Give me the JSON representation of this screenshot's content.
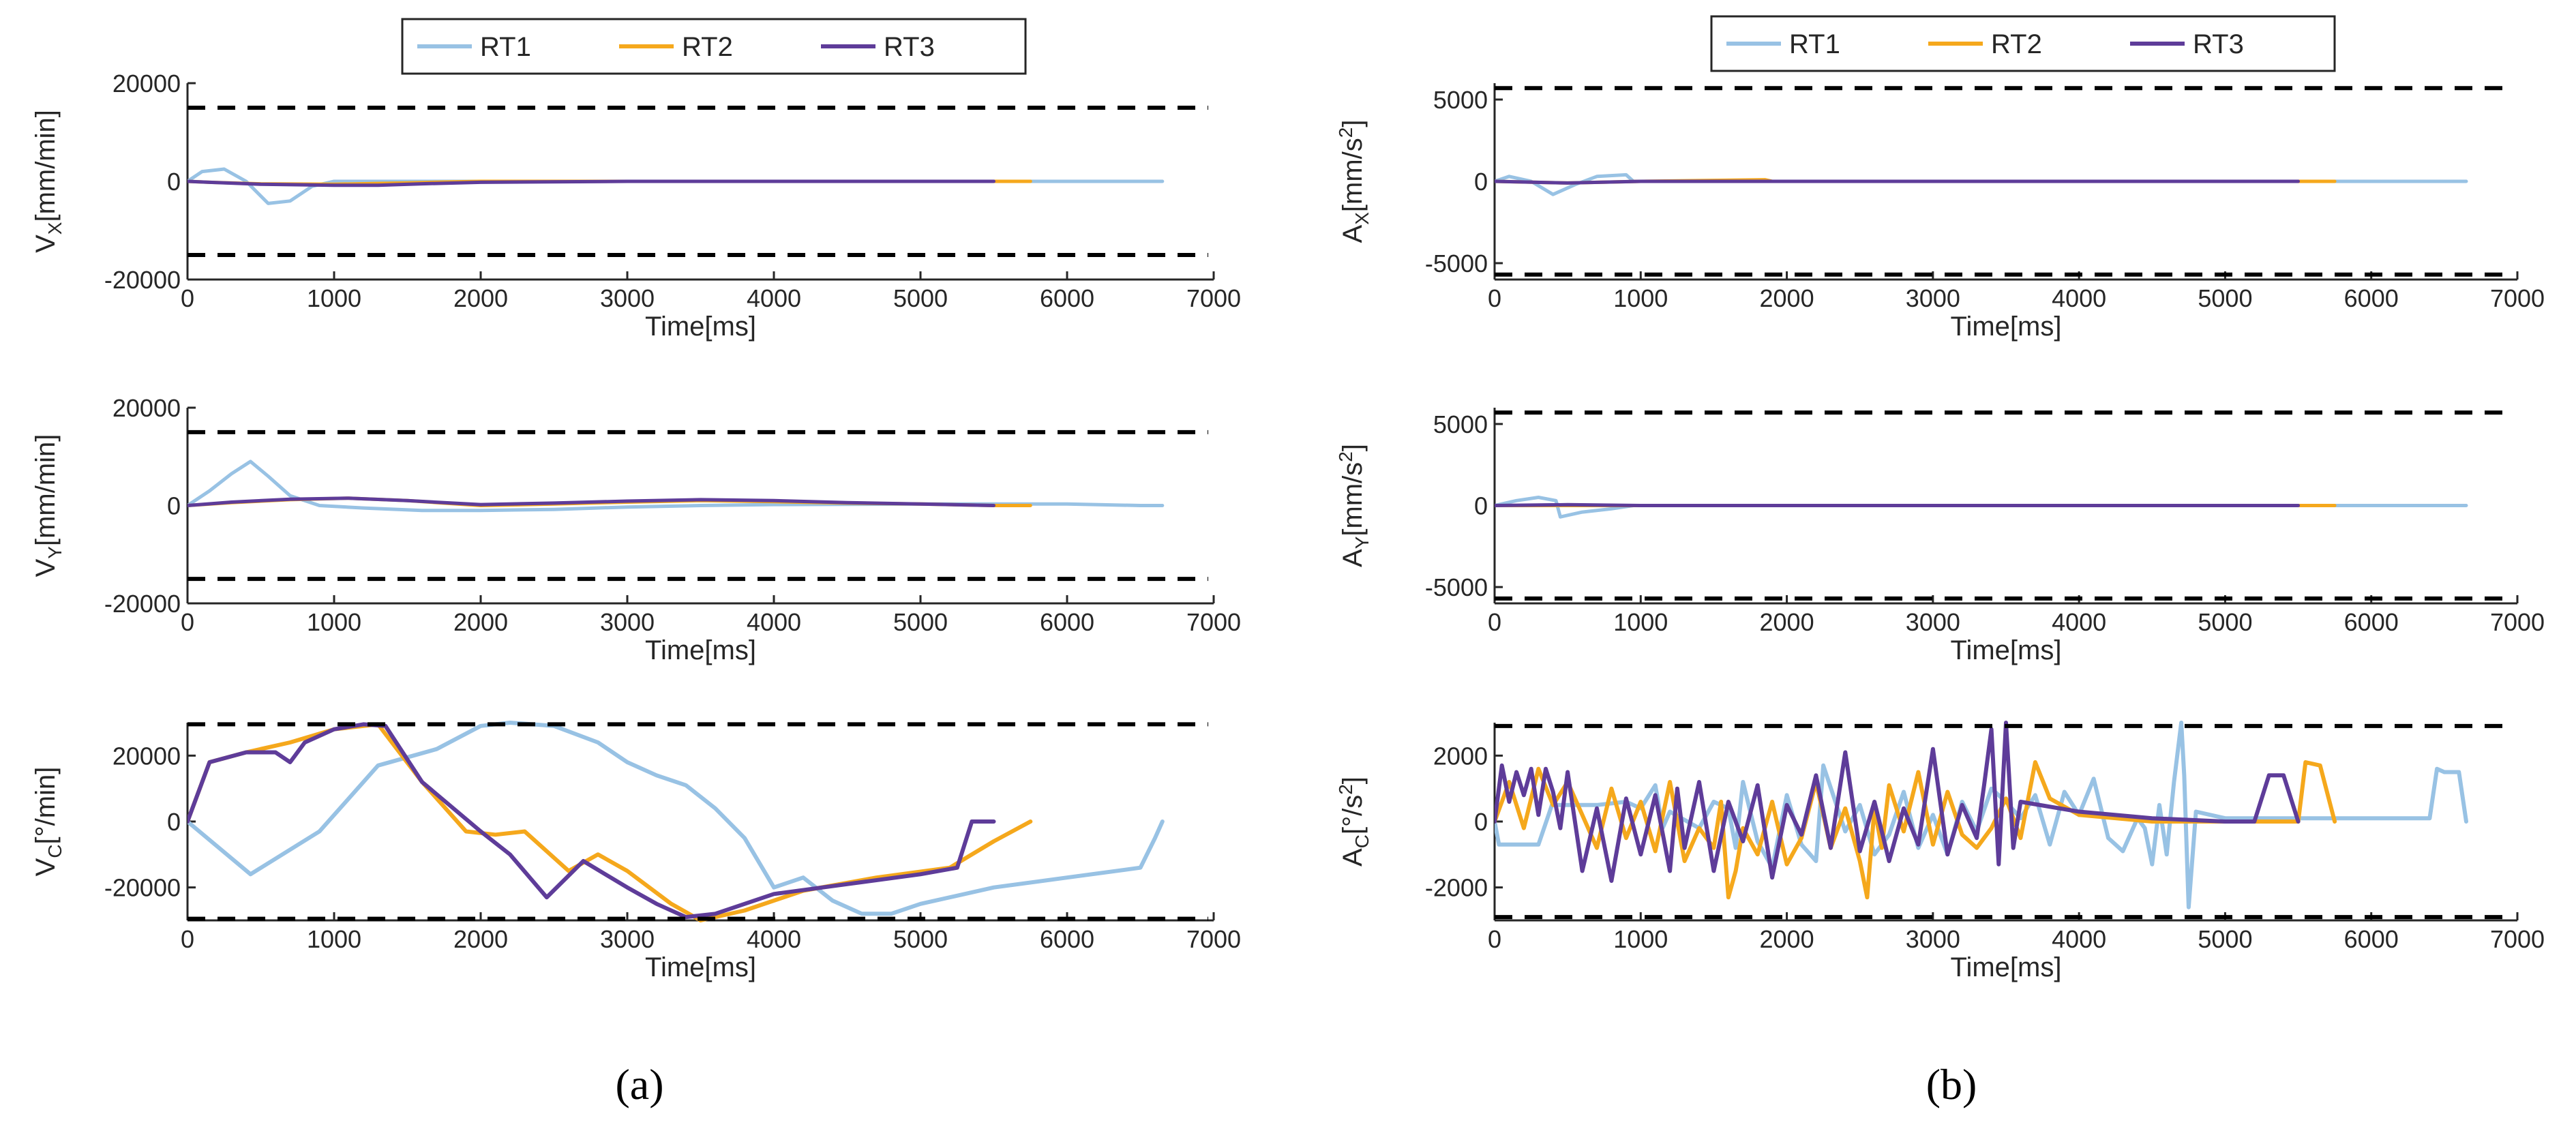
{
  "figure": {
    "panel_labels": [
      "(a)",
      "(b)"
    ],
    "series_colors": {
      "RT1": "#98c2e4",
      "RT2": "#f5a81c",
      "RT3": "#5e3c99"
    },
    "limit_color": "#000000"
  },
  "chart_data": [
    {
      "id": "vx",
      "type": "line",
      "panel": "a",
      "row": 0,
      "xlabel": "Time[ms]",
      "ylabel_main": "V",
      "ylabel_sub": "X",
      "ylabel_unit": "[mm/min]",
      "xlim": [
        0,
        7000
      ],
      "ylim": [
        -20000,
        20000
      ],
      "xticks": [
        0,
        1000,
        2000,
        3000,
        4000,
        5000,
        6000,
        7000
      ],
      "yticks": [
        -20000,
        0,
        20000
      ],
      "limits": [
        15000,
        -15000
      ],
      "legend": [
        "RT1",
        "RT2",
        "RT3"
      ],
      "series": [
        {
          "name": "RT1",
          "x": [
            0,
            100,
            250,
            400,
            550,
            700,
            850,
            1000,
            1500,
            2000,
            3000,
            4000,
            5000,
            6000,
            6650
          ],
          "y": [
            0,
            2000,
            2500,
            0,
            -4500,
            -4000,
            -1000,
            0,
            0,
            0,
            0,
            0,
            0,
            0,
            0
          ]
        },
        {
          "name": "RT2",
          "x": [
            0,
            150,
            500,
            1000,
            1500,
            2000,
            3000,
            4000,
            5000,
            5750
          ],
          "y": [
            0,
            -200,
            -500,
            -600,
            -300,
            0,
            0,
            0,
            0,
            0
          ]
        },
        {
          "name": "RT3",
          "x": [
            0,
            150,
            500,
            1000,
            1300,
            1600,
            2000,
            3000,
            4000,
            5000,
            5500
          ],
          "y": [
            0,
            -200,
            -600,
            -800,
            -800,
            -500,
            -200,
            0,
            0,
            0,
            0
          ]
        }
      ]
    },
    {
      "id": "vy",
      "type": "line",
      "panel": "a",
      "row": 1,
      "xlabel": "Time[ms]",
      "ylabel_main": "V",
      "ylabel_sub": "Y",
      "ylabel_unit": "[mm/min]",
      "xlim": [
        0,
        7000
      ],
      "ylim": [
        -20000,
        20000
      ],
      "xticks": [
        0,
        1000,
        2000,
        3000,
        4000,
        5000,
        6000,
        7000
      ],
      "yticks": [
        -20000,
        0,
        20000
      ],
      "limits": [
        15000,
        -15000
      ],
      "legend": [
        "RT1",
        "RT2",
        "RT3"
      ],
      "series": [
        {
          "name": "RT1",
          "x": [
            0,
            150,
            300,
            430,
            550,
            700,
            900,
            1200,
            1600,
            2000,
            2500,
            3000,
            3500,
            4000,
            5000,
            6000,
            6500,
            6650
          ],
          "y": [
            0,
            3000,
            6500,
            9000,
            6000,
            2000,
            0,
            -500,
            -1000,
            -1000,
            -800,
            -300,
            0,
            200,
            300,
            300,
            0,
            0
          ]
        },
        {
          "name": "RT2",
          "x": [
            0,
            300,
            700,
            1100,
            1500,
            2000,
            2500,
            3000,
            3500,
            4000,
            4500,
            5000,
            5500,
            5750
          ],
          "y": [
            0,
            600,
            1200,
            1500,
            1000,
            0,
            300,
            700,
            1000,
            800,
            500,
            300,
            0,
            0
          ]
        },
        {
          "name": "RT3",
          "x": [
            0,
            300,
            700,
            1100,
            1500,
            2000,
            2500,
            3000,
            3500,
            4000,
            4500,
            5000,
            5500
          ],
          "y": [
            0,
            700,
            1300,
            1500,
            1000,
            200,
            500,
            900,
            1200,
            1000,
            600,
            300,
            0
          ]
        }
      ]
    },
    {
      "id": "vc",
      "type": "line",
      "panel": "a",
      "row": 2,
      "xlabel": "Time[ms]",
      "ylabel_main": "V",
      "ylabel_sub": "C",
      "ylabel_unit": "[°/min]",
      "xlim": [
        0,
        7000
      ],
      "ylim": [
        -30000,
        30000
      ],
      "xticks": [
        0,
        1000,
        2000,
        3000,
        4000,
        5000,
        6000,
        7000
      ],
      "yticks": [
        -20000,
        0,
        20000
      ],
      "limits": [
        29500,
        -29500
      ],
      "legend": [
        "RT1",
        "RT2",
        "RT3"
      ],
      "series": [
        {
          "name": "RT1",
          "x": [
            0,
            430,
            900,
            1300,
            1700,
            2000,
            2200,
            2500,
            2800,
            3000,
            3200,
            3400,
            3600,
            3800,
            4000,
            4200,
            4400,
            4600,
            4800,
            5000,
            5500,
            6000,
            6500,
            6600,
            6650
          ],
          "y": [
            0,
            -16000,
            -3000,
            17000,
            22000,
            29000,
            30000,
            29000,
            24000,
            18000,
            14000,
            11000,
            4000,
            -5000,
            -20000,
            -17000,
            -24000,
            -28000,
            -28000,
            -25000,
            -20000,
            -17000,
            -14000,
            -5000,
            0
          ]
        },
        {
          "name": "RT2",
          "x": [
            0,
            150,
            400,
            700,
            1000,
            1300,
            1600,
            1900,
            2100,
            2300,
            2600,
            2800,
            3000,
            3300,
            3500,
            3800,
            4200,
            4700,
            5200,
            5500,
            5750
          ],
          "y": [
            0,
            18000,
            21000,
            24000,
            28000,
            29500,
            12000,
            -3000,
            -4000,
            -3000,
            -15000,
            -10000,
            -15000,
            -25000,
            -30000,
            -27000,
            -21000,
            -17000,
            -14000,
            -6000,
            0
          ]
        },
        {
          "name": "RT3",
          "x": [
            0,
            150,
            400,
            600,
            700,
            800,
            1000,
            1200,
            1350,
            1600,
            2000,
            2200,
            2450,
            2700,
            3000,
            3200,
            3400,
            3600,
            4000,
            4500,
            5000,
            5250,
            5350,
            5500
          ],
          "y": [
            0,
            18000,
            21000,
            21000,
            18000,
            24000,
            28000,
            29500,
            29000,
            12000,
            -3000,
            -10000,
            -23000,
            -12000,
            -20000,
            -25000,
            -29000,
            -28000,
            -22000,
            -19000,
            -16000,
            -14000,
            0,
            0
          ]
        }
      ]
    },
    {
      "id": "ax",
      "type": "line",
      "panel": "b",
      "row": 0,
      "xlabel": "Time[ms]",
      "ylabel_main": "A",
      "ylabel_sub": "X",
      "ylabel_unit": "[mm/s",
      "ylabel_sup": "2",
      "ylabel_end": "]",
      "xlim": [
        0,
        7000
      ],
      "ylim": [
        -6000,
        6000
      ],
      "xticks": [
        0,
        1000,
        2000,
        3000,
        4000,
        5000,
        6000,
        7000
      ],
      "yticks": [
        -5000,
        0,
        5000
      ],
      "limits": [
        5700,
        -5700
      ],
      "legend": [
        "RT1",
        "RT2",
        "RT3"
      ],
      "series": [
        {
          "name": "RT1",
          "x": [
            0,
            100,
            250,
            400,
            550,
            700,
            900,
            950,
            1000,
            2000,
            3000,
            4000,
            5000,
            6000,
            6650
          ],
          "y": [
            0,
            300,
            0,
            -800,
            -200,
            300,
            400,
            0,
            0,
            0,
            0,
            0,
            0,
            0,
            0
          ]
        },
        {
          "name": "RT2",
          "x": [
            0,
            500,
            1000,
            1850,
            1900,
            2000,
            3000,
            4000,
            5000,
            5750
          ],
          "y": [
            0,
            -100,
            0,
            100,
            0,
            0,
            0,
            0,
            0,
            0
          ]
        },
        {
          "name": "RT3",
          "x": [
            0,
            500,
            1000,
            2000,
            3000,
            4000,
            5000,
            5500
          ],
          "y": [
            0,
            -100,
            0,
            0,
            0,
            0,
            0,
            0
          ]
        }
      ]
    },
    {
      "id": "ay",
      "type": "line",
      "panel": "b",
      "row": 1,
      "xlabel": "Time[ms]",
      "ylabel_main": "A",
      "ylabel_sub": "Y",
      "ylabel_unit": "[mm/s",
      "ylabel_sup": "2",
      "ylabel_end": "]",
      "xlim": [
        0,
        7000
      ],
      "ylim": [
        -6000,
        6000
      ],
      "xticks": [
        0,
        1000,
        2000,
        3000,
        4000,
        5000,
        6000,
        7000
      ],
      "yticks": [
        -5000,
        0,
        5000
      ],
      "limits": [
        5700,
        -5700
      ],
      "legend": [
        "RT1",
        "RT2",
        "RT3"
      ],
      "series": [
        {
          "name": "RT1",
          "x": [
            0,
            150,
            300,
            420,
            450,
            600,
            800,
            950,
            1000,
            2000,
            3000,
            4000,
            5000,
            6000,
            6650
          ],
          "y": [
            0,
            300,
            500,
            300,
            -700,
            -400,
            -200,
            0,
            0,
            0,
            0,
            0,
            0,
            0,
            0
          ]
        },
        {
          "name": "RT2",
          "x": [
            0,
            500,
            1000,
            2000,
            3000,
            4000,
            5000,
            5750
          ],
          "y": [
            0,
            0,
            0,
            0,
            0,
            0,
            0,
            0
          ]
        },
        {
          "name": "RT3",
          "x": [
            0,
            500,
            1000,
            2000,
            3000,
            4000,
            5000,
            5500
          ],
          "y": [
            0,
            50,
            0,
            0,
            0,
            0,
            0,
            0
          ]
        }
      ]
    },
    {
      "id": "ac",
      "type": "line",
      "panel": "b",
      "row": 2,
      "xlabel": "Time[ms]",
      "ylabel_main": "A",
      "ylabel_sub": "C",
      "ylabel_unit": "[°/s",
      "ylabel_sup": "2",
      "ylabel_end": "]",
      "xlim": [
        0,
        7000
      ],
      "ylim": [
        -3000,
        3000
      ],
      "xticks": [
        0,
        1000,
        2000,
        3000,
        4000,
        5000,
        6000,
        7000
      ],
      "yticks": [
        -2000,
        0,
        2000
      ],
      "limits": [
        2900,
        -2900
      ],
      "legend": [
        "RT1",
        "RT2",
        "RT3"
      ],
      "series": [
        {
          "name": "RT1",
          "x": [
            0,
            30,
            300,
            400,
            420,
            700,
            900,
            1000,
            1100,
            1150,
            1200,
            1400,
            1500,
            1600,
            1650,
            1700,
            1800,
            1900,
            2000,
            2100,
            2200,
            2250,
            2400,
            2500,
            2600,
            2700,
            2800,
            2900,
            3000,
            3100,
            3200,
            3300,
            3400,
            3500,
            3600,
            3700,
            3800,
            3900,
            4000,
            4100,
            4200,
            4300,
            4400,
            4450,
            4500,
            4550,
            4600,
            4650,
            4700,
            4720,
            4750,
            4800,
            5000,
            6000,
            6400,
            6450,
            6500,
            6600,
            6650
          ],
          "y": [
            0,
            -700,
            -700,
            600,
            500,
            500,
            600,
            400,
            1100,
            -200,
            300,
            -200,
            600,
            400,
            -800,
            1200,
            -600,
            -1400,
            800,
            -700,
            -1200,
            1700,
            -300,
            500,
            -1000,
            -400,
            900,
            -800,
            200,
            -1000,
            600,
            -300,
            1000,
            600,
            100,
            800,
            -700,
            900,
            200,
            1300,
            -500,
            -900,
            100,
            -200,
            -1300,
            500,
            -1000,
            1200,
            3000,
            1400,
            -2600,
            300,
            100,
            100,
            100,
            1600,
            1500,
            1500,
            0
          ]
        },
        {
          "name": "RT2",
          "x": [
            0,
            100,
            200,
            300,
            400,
            500,
            600,
            700,
            800,
            900,
            1000,
            1100,
            1200,
            1300,
            1400,
            1500,
            1550,
            1600,
            1650,
            1700,
            1800,
            1900,
            2000,
            2100,
            2200,
            2300,
            2400,
            2500,
            2550,
            2600,
            2650,
            2700,
            2800,
            2900,
            3000,
            3100,
            3200,
            3300,
            3400,
            3500,
            3600,
            3700,
            3800,
            4000,
            4500,
            5000,
            5500,
            5550,
            5650,
            5750
          ],
          "y": [
            0,
            1200,
            -200,
            1600,
            500,
            1200,
            200,
            -800,
            1000,
            -500,
            600,
            -900,
            1200,
            -1200,
            -200,
            -800,
            600,
            -2300,
            -1500,
            -200,
            -1000,
            600,
            -1300,
            -500,
            1200,
            -800,
            400,
            -1200,
            -2300,
            400,
            -800,
            1100,
            -300,
            1500,
            -700,
            900,
            -400,
            -800,
            -200,
            700,
            -500,
            1800,
            700,
            200,
            0,
            0,
            0,
            1800,
            1700,
            0
          ]
        },
        {
          "name": "RT3",
          "x": [
            0,
            50,
            100,
            150,
            200,
            250,
            300,
            350,
            400,
            450,
            500,
            600,
            700,
            800,
            900,
            1000,
            1100,
            1200,
            1250,
            1300,
            1400,
            1500,
            1600,
            1700,
            1800,
            1900,
            2000,
            2100,
            2200,
            2300,
            2400,
            2500,
            2600,
            2700,
            2800,
            2900,
            3000,
            3100,
            3200,
            3300,
            3350,
            3400,
            3450,
            3500,
            3550,
            3600,
            4000,
            4500,
            5000,
            5200,
            5300,
            5400,
            5500
          ],
          "y": [
            0,
            1700,
            600,
            1500,
            800,
            1600,
            200,
            1600,
            900,
            -200,
            1500,
            -1500,
            400,
            -1800,
            700,
            -1000,
            800,
            -1500,
            1000,
            -800,
            1200,
            -1500,
            600,
            -600,
            1100,
            -1700,
            500,
            -400,
            1400,
            -800,
            2100,
            -900,
            600,
            -1200,
            400,
            -700,
            2200,
            -1000,
            500,
            -500,
            1100,
            2800,
            -1300,
            3000,
            -800,
            600,
            300,
            100,
            0,
            0,
            1400,
            1400,
            0
          ]
        }
      ]
    }
  ]
}
